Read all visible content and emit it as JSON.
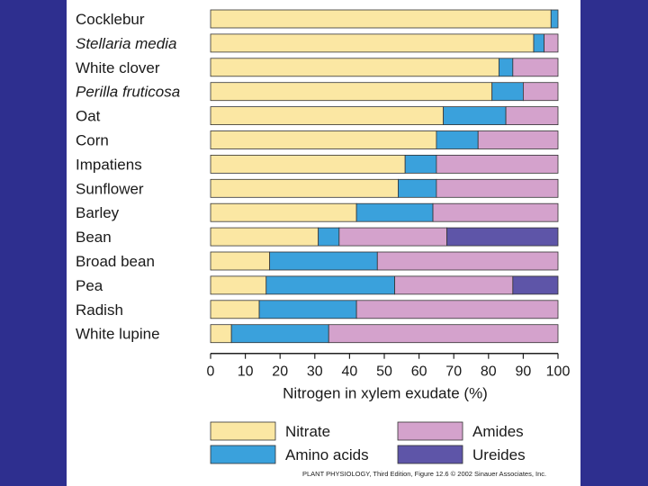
{
  "chart_data": {
    "type": "bar",
    "orientation": "horizontal",
    "stacked": true,
    "categories": [
      "Cocklebur",
      "Stellaria media",
      "White clover",
      "Perilla fruticosa",
      "Oat",
      "Corn",
      "Impatiens",
      "Sunflower",
      "Barley",
      "Bean",
      "Broad bean",
      "Pea",
      "Radish",
      "White lupine"
    ],
    "italic_categories": [
      "Stellaria media",
      "Perilla fruticosa"
    ],
    "series": [
      {
        "name": "Nitrate",
        "color": "#fbe7a3",
        "values": [
          98,
          93,
          83,
          81,
          67,
          65,
          56,
          54,
          42,
          31,
          17,
          16,
          14,
          6
        ]
      },
      {
        "name": "Amino acids",
        "color": "#3aa1dc",
        "values": [
          2,
          3,
          4,
          9,
          18,
          12,
          9,
          11,
          22,
          6,
          31,
          37,
          28,
          28
        ]
      },
      {
        "name": "Amides",
        "color": "#d4a2cc",
        "values": [
          0,
          4,
          13,
          10,
          15,
          23,
          35,
          35,
          36,
          31,
          52,
          34,
          58,
          66
        ]
      },
      {
        "name": "Ureides",
        "color": "#5e55a8",
        "values": [
          0,
          0,
          0,
          0,
          0,
          0,
          0,
          0,
          0,
          32,
          0,
          13,
          0,
          0
        ]
      }
    ],
    "xlabel": "Nitrogen in xylem exudate (%)",
    "ylabel": "",
    "xlim": [
      0,
      100
    ],
    "xticks": [
      0,
      10,
      20,
      30,
      40,
      50,
      60,
      70,
      80,
      90,
      100
    ],
    "legend_position": "bottom",
    "legend_order": [
      "Nitrate",
      "Amides",
      "Amino acids",
      "Ureides"
    ]
  },
  "credit": "PLANT PHYSIOLOGY, Third Edition, Figure 12.6  © 2002 Sinauer Associates, Inc."
}
